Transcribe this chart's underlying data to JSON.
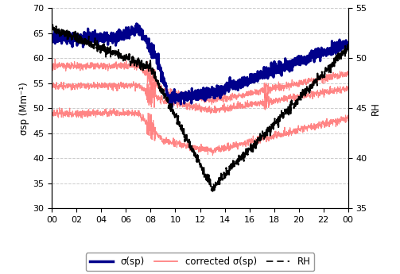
{
  "ylabel_left": "σsp (Mm⁻¹)",
  "ylabel_right": "RH",
  "ylim_left": [
    30,
    70
  ],
  "ylim_right": [
    35,
    55
  ],
  "yticks_left": [
    30,
    35,
    40,
    45,
    50,
    55,
    60,
    65,
    70
  ],
  "yticks_right": [
    35,
    40,
    45,
    50,
    55
  ],
  "xticks": [
    0,
    2,
    4,
    6,
    8,
    10,
    12,
    14,
    16,
    18,
    20,
    22,
    24
  ],
  "xticklabels": [
    "00",
    "02",
    "04",
    "06",
    "08",
    "10",
    "12",
    "14",
    "16",
    "18",
    "20",
    "22",
    "00"
  ],
  "color_sigma": "#00008B",
  "color_corrected": "#FF7777",
  "color_rh": "#000000",
  "grid_color": "#CCCCCC",
  "legend_labels": [
    "σ(sp)",
    "corrected σ(sp)",
    "RH"
  ]
}
